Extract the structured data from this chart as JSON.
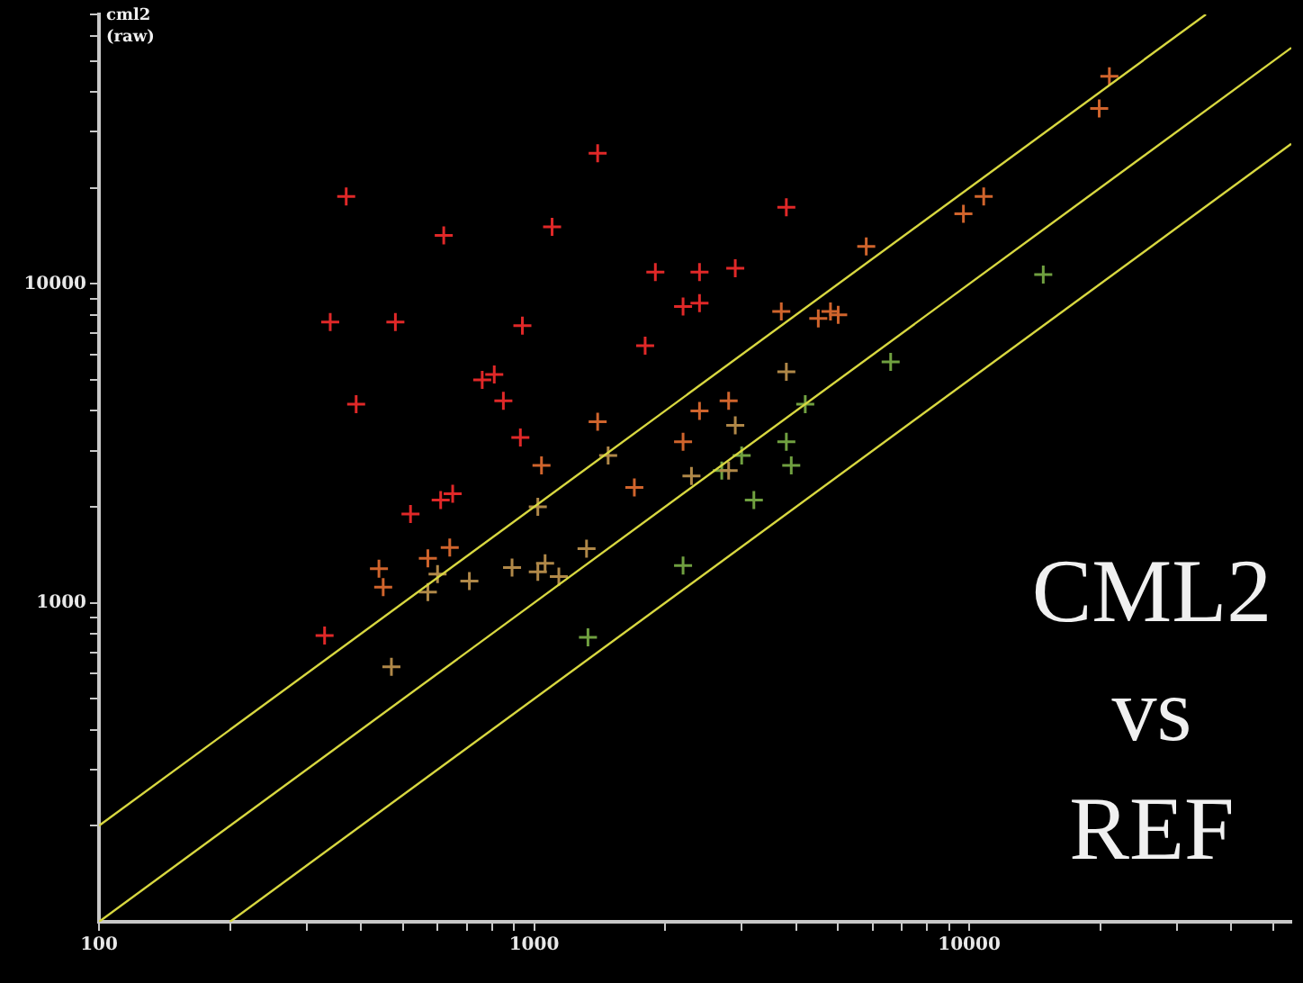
{
  "chart_data": {
    "type": "scatter",
    "ylabel": "cml2 (raw)",
    "annotations": [
      "CML2\nvs\nREF"
    ],
    "xlim": [
      100,
      55000
    ],
    "ylim": [
      100,
      70000
    ],
    "xticks": [
      100,
      {
        "value": 200,
        "label": null
      },
      {
        "value": 300,
        "label": null
      },
      {
        "value": 400,
        "label": null
      },
      {
        "value": 500,
        "label": null
      },
      {
        "value": 600,
        "label": null
      },
      {
        "value": 700,
        "label": null
      },
      {
        "value": 800,
        "label": null
      },
      {
        "value": 900,
        "label": null
      },
      1000,
      {
        "value": 2000,
        "label": null
      },
      {
        "value": 3000,
        "label": null
      },
      {
        "value": 4000,
        "label": null
      },
      {
        "value": 5000,
        "label": null
      },
      {
        "value": 6000,
        "label": null
      },
      {
        "value": 7000,
        "label": null
      },
      {
        "value": 8000,
        "label": null
      },
      {
        "value": 9000,
        "label": null
      },
      10000,
      {
        "value": 20000,
        "label": null
      },
      {
        "value": 30000,
        "label": null
      },
      {
        "value": 40000,
        "label": null
      },
      {
        "value": 50000,
        "label": null
      }
    ],
    "yticks": [
      {
        "value": 200,
        "label": null
      },
      {
        "value": 300,
        "label": null
      },
      {
        "value": 400,
        "label": null
      },
      {
        "value": 500,
        "label": null
      },
      {
        "value": 600,
        "label": null
      },
      {
        "value": 700,
        "label": null
      },
      {
        "value": 800,
        "label": null
      },
      {
        "value": 900,
        "label": null
      },
      1000,
      {
        "value": 2000,
        "label": null
      },
      {
        "value": 3000,
        "label": null
      },
      {
        "value": 4000,
        "label": null
      },
      {
        "value": 5000,
        "label": null
      },
      {
        "value": 6000,
        "label": null
      },
      {
        "value": 7000,
        "label": null
      },
      {
        "value": 8000,
        "label": null
      },
      {
        "value": 9000,
        "label": null
      },
      10000,
      {
        "value": 20000,
        "label": null
      },
      {
        "value": 30000,
        "label": null
      },
      {
        "value": 40000,
        "label": null
      },
      {
        "value": 50000,
        "label": null
      },
      {
        "value": 60000,
        "label": null
      },
      {
        "value": 70000,
        "label": null
      }
    ],
    "log": "xy",
    "grid": false,
    "legend": false,
    "marker": "cross",
    "series": [
      {
        "type": "line",
        "marker": "none",
        "color": "#d8d840",
        "x": [
          100,
          35000
        ],
        "values": [
          200,
          70000
        ]
      },
      {
        "type": "line",
        "marker": "none",
        "color": "#d8d840",
        "x": [
          100,
          55000
        ],
        "values": [
          100,
          55000
        ]
      },
      {
        "type": "line",
        "marker": "none",
        "color": "#d8d840",
        "x": [
          200,
          55000
        ],
        "values": [
          100,
          27500
        ]
      },
      {
        "color": "#e02828",
        "x": [
          1400,
          370,
          620,
          1100,
          340,
          480,
          940,
          1800,
          760,
          810,
          390,
          850,
          930,
          3800,
          1900,
          2400,
          2900,
          2200,
          2400,
          520,
          610,
          650,
          330
        ],
        "values": [
          25700,
          18800,
          14200,
          15100,
          7600,
          7600,
          7400,
          6400,
          5000,
          5200,
          4200,
          4300,
          3300,
          17400,
          10900,
          10900,
          11200,
          8500,
          8700,
          1900,
          2100,
          2200,
          790
        ]
      },
      {
        "color": "#d0642c",
        "x": [
          1400,
          1040,
          440,
          570,
          640,
          450,
          3700,
          4500,
          4800,
          5000,
          5800,
          9700,
          10800,
          21000,
          19900,
          2400,
          2800,
          2200,
          1700
        ],
        "values": [
          3700,
          2700,
          1280,
          1380,
          1490,
          1120,
          8200,
          7800,
          8200,
          8000,
          13100,
          16600,
          18800,
          44800,
          35500,
          4000,
          4300,
          3200,
          2300
        ]
      },
      {
        "color": "#b08848",
        "x": [
          1480,
          1020,
          2900,
          3800,
          2300,
          570,
          600,
          710,
          890,
          1020,
          1060,
          1140,
          1320,
          470,
          2800
        ],
        "values": [
          2900,
          2000,
          3600,
          5300,
          2500,
          1080,
          1230,
          1170,
          1290,
          1250,
          1330,
          1210,
          1480,
          630,
          2600
        ]
      },
      {
        "color": "#70a040",
        "x": [
          14800,
          6600,
          4200,
          3800,
          3900,
          2700,
          3000,
          3200,
          2200,
          1330
        ],
        "values": [
          10700,
          5700,
          4200,
          3200,
          2700,
          2600,
          2900,
          2100,
          1310,
          780
        ]
      }
    ]
  }
}
